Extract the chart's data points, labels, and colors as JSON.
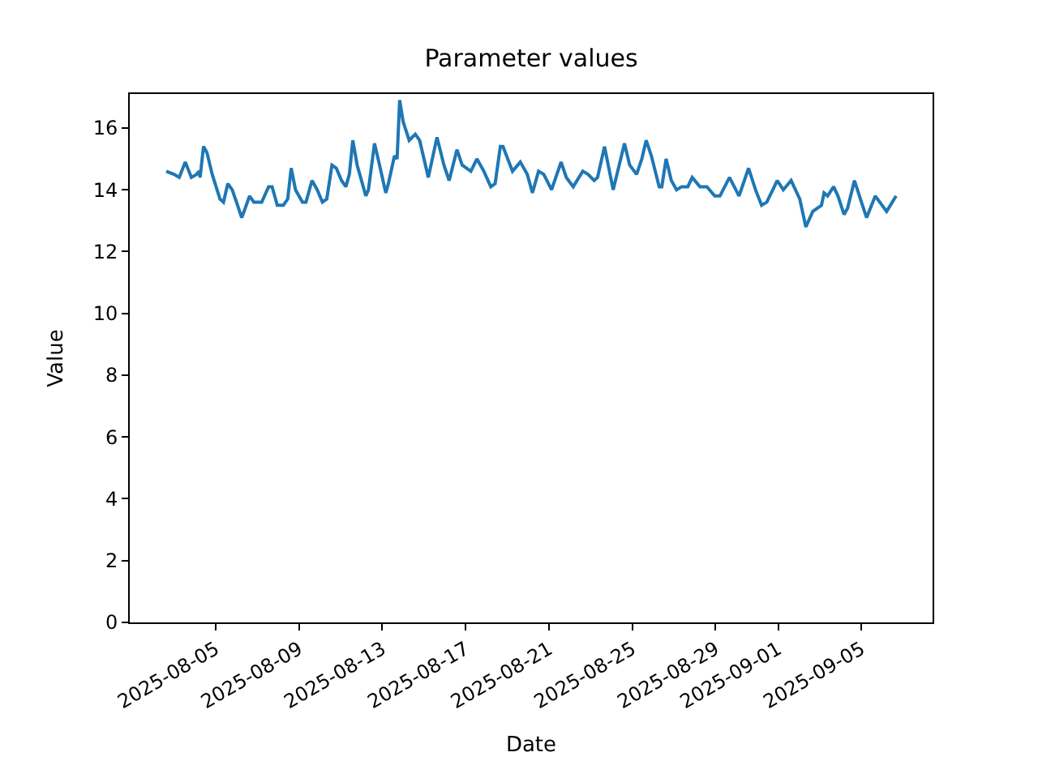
{
  "chart_data": {
    "type": "line",
    "title": "Parameter values",
    "xlabel": "Date",
    "ylabel": "Value",
    "x": [
      "2025-08-02T15:00",
      "2025-08-03T00:00",
      "2025-08-03T06:00",
      "2025-08-03T13:00",
      "2025-08-03T20:00",
      "2025-08-04T02:00",
      "2025-08-04T05:00",
      "2025-08-04T06:00",
      "2025-08-04T10:00",
      "2025-08-04T14:00",
      "2025-08-04T20:00",
      "2025-08-05T05:00",
      "2025-08-05T09:00",
      "2025-08-05T14:00",
      "2025-08-05T19:00",
      "2025-08-06T00:00",
      "2025-08-06T06:00",
      "2025-08-06T10:00",
      "2025-08-06T15:00",
      "2025-08-06T20:00",
      "2025-08-07T05:00",
      "2025-08-07T13:00",
      "2025-08-07T17:00",
      "2025-08-07T23:00",
      "2025-08-08T06:00",
      "2025-08-08T11:00",
      "2025-08-08T15:00",
      "2025-08-08T20:00",
      "2025-08-09T04:00",
      "2025-08-09T08:00",
      "2025-08-09T15:00",
      "2025-08-09T21:00",
      "2025-08-10T03:00",
      "2025-08-10T08:00",
      "2025-08-10T14:00",
      "2025-08-10T19:00",
      "2025-08-11T01:00",
      "2025-08-11T06:00",
      "2025-08-11T10:00",
      "2025-08-11T14:00",
      "2025-08-11T19:00",
      "2025-08-12T05:00",
      "2025-08-12T08:00",
      "2025-08-12T15:00",
      "2025-08-12T20:00",
      "2025-08-13T04:00",
      "2025-08-13T07:00",
      "2025-08-13T14:00",
      "2025-08-13T17:00",
      "2025-08-13T20:00",
      "2025-08-14T00:00",
      "2025-08-14T07:00",
      "2025-08-14T14:00",
      "2025-08-14T19:00",
      "2025-08-15T05:00",
      "2025-08-15T15:00",
      "2025-08-15T23:00",
      "2025-08-16T05:00",
      "2025-08-16T14:00",
      "2025-08-16T20:00",
      "2025-08-17T06:00",
      "2025-08-17T13:00",
      "2025-08-17T21:00",
      "2025-08-18T05:00",
      "2025-08-18T10:00",
      "2025-08-18T16:00",
      "2025-08-18T19:00",
      "2025-08-19T06:00",
      "2025-08-19T15:00",
      "2025-08-19T23:00",
      "2025-08-20T05:00",
      "2025-08-20T12:00",
      "2025-08-20T18:00",
      "2025-08-21T03:00",
      "2025-08-21T14:00",
      "2025-08-21T20:00",
      "2025-08-22T04:00",
      "2025-08-22T15:00",
      "2025-08-22T21:00",
      "2025-08-23T04:00",
      "2025-08-23T08:00",
      "2025-08-23T16:00",
      "2025-08-24T02:00",
      "2025-08-24T15:00",
      "2025-08-24T21:00",
      "2025-08-25T05:00",
      "2025-08-25T11:00",
      "2025-08-25T16:00",
      "2025-08-25T22:00",
      "2025-08-26T07:00",
      "2025-08-26T10:00",
      "2025-08-26T15:00",
      "2025-08-26T21:00",
      "2025-08-27T03:00",
      "2025-08-27T09:00",
      "2025-08-27T16:00",
      "2025-08-27T21:00",
      "2025-08-28T06:00",
      "2025-08-28T14:00",
      "2025-08-28T23:00",
      "2025-08-29T05:00",
      "2025-08-29T16:00",
      "2025-08-30T03:00",
      "2025-08-30T14:00",
      "2025-08-30T22:00",
      "2025-08-31T05:00",
      "2025-08-31T11:00",
      "2025-08-31T23:00",
      "2025-09-01T06:00",
      "2025-09-01T15:00",
      "2025-09-02T01:00",
      "2025-09-02T08:00",
      "2025-09-02T16:00",
      "2025-09-03T02:00",
      "2025-09-03T05:00",
      "2025-09-03T09:00",
      "2025-09-03T16:00",
      "2025-09-03T21:00",
      "2025-09-04T04:00",
      "2025-09-04T08:00",
      "2025-09-04T16:00",
      "2025-09-05T00:00",
      "2025-09-05T06:00",
      "2025-09-05T16:00",
      "2025-09-06T05:00",
      "2025-09-06T16:00"
    ],
    "series": [
      {
        "color": "#1f77b4",
        "values": [
          14.6,
          14.5,
          14.4,
          14.9,
          14.4,
          14.5,
          14.6,
          14.4,
          15.4,
          15.2,
          14.5,
          13.7,
          13.6,
          14.2,
          14.0,
          13.6,
          13.1,
          13.4,
          13.8,
          13.6,
          13.6,
          14.1,
          14.1,
          13.5,
          13.5,
          13.7,
          14.7,
          14.0,
          13.6,
          13.6,
          14.3,
          14.0,
          13.6,
          13.7,
          14.8,
          14.7,
          14.3,
          14.1,
          14.5,
          15.6,
          14.8,
          13.8,
          14.0,
          15.5,
          14.9,
          13.9,
          14.2,
          15.1,
          15.0,
          16.9,
          16.2,
          15.6,
          15.8,
          15.6,
          14.4,
          15.7,
          14.8,
          14.3,
          15.3,
          14.8,
          14.6,
          15.0,
          14.6,
          14.1,
          14.2,
          15.4,
          15.4,
          14.6,
          14.9,
          14.5,
          13.9,
          14.6,
          14.5,
          14.0,
          14.9,
          14.4,
          14.1,
          14.6,
          14.5,
          14.3,
          14.4,
          15.4,
          14.0,
          15.5,
          14.8,
          14.5,
          15.0,
          15.6,
          15.1,
          14.1,
          14.1,
          15.0,
          14.3,
          14.0,
          14.1,
          14.1,
          14.4,
          14.1,
          14.1,
          13.8,
          13.8,
          14.4,
          13.8,
          14.7,
          14.0,
          13.5,
          13.6,
          14.3,
          14.0,
          14.3,
          13.7,
          12.8,
          13.3,
          13.5,
          13.9,
          13.8,
          14.1,
          13.8,
          13.2,
          13.4,
          14.3,
          13.6,
          13.1,
          13.8,
          13.3,
          13.8
        ]
      }
    ],
    "xlim": [
      "2025-07-31T21:00",
      "2025-09-08T10:00"
    ],
    "xticks": [
      "2025-08-05",
      "2025-08-09",
      "2025-08-13",
      "2025-08-17",
      "2025-08-21",
      "2025-08-25",
      "2025-08-29",
      "2025-09-01",
      "2025-09-05"
    ],
    "ylim": [
      0,
      17.1
    ],
    "yticks": [
      0,
      2,
      4,
      6,
      8,
      10,
      12,
      14,
      16
    ],
    "marker": "none",
    "line_style": "solid"
  }
}
